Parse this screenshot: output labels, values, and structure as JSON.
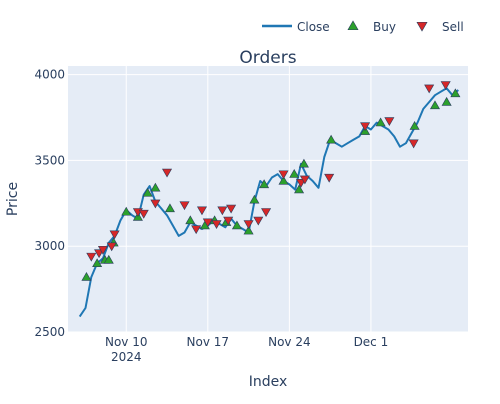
{
  "chart_data": {
    "type": "line",
    "title": "Orders",
    "xlabel": "Index",
    "ylabel": "Price",
    "x_range": [
      "2024-11-05",
      "2024-12-09T08:00"
    ],
    "ylim": [
      2500,
      4050
    ],
    "y_ticks": [
      2500,
      3000,
      3500,
      4000
    ],
    "y_tick_labels": [
      "2500",
      "3000",
      "3500",
      "4000"
    ],
    "x_ticks": [
      "2024-11-10",
      "2024-11-17",
      "2024-11-24",
      "2024-12-01"
    ],
    "x_tick_labels": [
      "Nov 10",
      "Nov 17",
      "Nov 24",
      "Dec 1"
    ],
    "x_tick_sublabel": "2024",
    "grid": true,
    "legend_position": "top-right",
    "colors": {
      "close": "#1f77b4",
      "buy": "#2ca02c",
      "sell": "#d62728",
      "plot_bg": "#e5ecf6",
      "text": "#2a3f5f"
    },
    "series": [
      {
        "name": "Close",
        "kind": "line",
        "x": [
          "2024-11-06",
          "2024-11-06T12:00",
          "2024-11-07",
          "2024-11-07T12:00",
          "2024-11-08",
          "2024-11-08T12:00",
          "2024-11-09",
          "2024-11-09T12:00",
          "2024-11-10",
          "2024-11-10T12:00",
          "2024-11-11",
          "2024-11-11T12:00",
          "2024-11-12",
          "2024-11-12T12:00",
          "2024-11-13",
          "2024-11-13T12:00",
          "2024-11-14",
          "2024-11-14T12:00",
          "2024-11-15",
          "2024-11-15T12:00",
          "2024-11-16",
          "2024-11-16T12:00",
          "2024-11-17",
          "2024-11-17T12:00",
          "2024-11-18",
          "2024-11-18T12:00",
          "2024-11-19",
          "2024-11-19T12:00",
          "2024-11-20",
          "2024-11-20T12:00",
          "2024-11-21",
          "2024-11-21T12:00",
          "2024-11-22",
          "2024-11-22T12:00",
          "2024-11-23",
          "2024-11-23T12:00",
          "2024-11-24",
          "2024-11-24T12:00",
          "2024-11-25",
          "2024-11-25T12:00",
          "2024-11-26",
          "2024-11-26T12:00",
          "2024-11-27",
          "2024-11-27T12:00",
          "2024-11-28",
          "2024-11-28T12:00",
          "2024-11-29",
          "2024-11-29T12:00",
          "2024-11-30",
          "2024-11-30T12:00",
          "2024-12-01",
          "2024-12-01T12:00",
          "2024-12-02",
          "2024-12-02T12:00",
          "2024-12-03",
          "2024-12-03T12:00",
          "2024-12-04",
          "2024-12-04T12:00",
          "2024-12-05",
          "2024-12-05T12:00",
          "2024-12-06",
          "2024-12-06T12:00",
          "2024-12-07",
          "2024-12-07T12:00",
          "2024-12-08",
          "2024-12-08T12:00"
        ],
        "y": [
          2590,
          2640,
          2820,
          2900,
          2930,
          3020,
          3060,
          3150,
          3210,
          3180,
          3160,
          3300,
          3350,
          3260,
          3220,
          3180,
          3120,
          3060,
          3080,
          3140,
          3120,
          3100,
          3120,
          3150,
          3130,
          3110,
          3160,
          3120,
          3100,
          3080,
          3260,
          3380,
          3350,
          3400,
          3420,
          3380,
          3360,
          3330,
          3480,
          3410,
          3380,
          3340,
          3520,
          3620,
          3600,
          3580,
          3600,
          3620,
          3640,
          3700,
          3680,
          3720,
          3700,
          3680,
          3640,
          3580,
          3600,
          3660,
          3720,
          3800,
          3840,
          3880,
          3900,
          3920,
          3880,
          3910
        ]
      },
      {
        "name": "Buy",
        "kind": "marker",
        "marker": "triangle-up",
        "x": [
          "2024-11-06T14:00",
          "2024-11-07T12:00",
          "2024-11-08T04:00",
          "2024-11-08T12:00",
          "2024-11-08T22:00",
          "2024-11-10",
          "2024-11-11",
          "2024-11-11T20:00",
          "2024-11-12T12:00",
          "2024-11-13T18:00",
          "2024-11-15T12:00",
          "2024-11-16T18:00",
          "2024-11-17T14:00",
          "2024-11-18T14:00",
          "2024-11-19T12:00",
          "2024-11-20T12:00",
          "2024-11-21",
          "2024-11-21T20:00",
          "2024-11-23T12:00",
          "2024-11-24T10:00",
          "2024-11-24T20:00",
          "2024-11-25T06:00",
          "2024-11-27T14:00",
          "2024-11-30T12:00",
          "2024-12-01T20:00",
          "2024-12-04T18:00",
          "2024-12-06T12:00",
          "2024-12-07T12:00",
          "2024-12-08T06:00"
        ],
        "y": [
          2820,
          2900,
          2920,
          2920,
          3020,
          3200,
          3170,
          3310,
          3340,
          3220,
          3150,
          3120,
          3150,
          3140,
          3120,
          3090,
          3270,
          3360,
          3380,
          3420,
          3330,
          3480,
          3620,
          3670,
          3720,
          3700,
          3820,
          3840,
          3890
        ]
      },
      {
        "name": "Sell",
        "kind": "marker",
        "marker": "triangle-down",
        "x": [
          "2024-11-07",
          "2024-11-07T16:00",
          "2024-11-08",
          "2024-11-08T18:00",
          "2024-11-09",
          "2024-11-11",
          "2024-11-11T12:00",
          "2024-11-12T12:00",
          "2024-11-13T12:00",
          "2024-11-15",
          "2024-11-16",
          "2024-11-16T12:00",
          "2024-11-17",
          "2024-11-17T18:00",
          "2024-11-18T06:00",
          "2024-11-18T18:00",
          "2024-11-19",
          "2024-11-20T12:00",
          "2024-11-21T08:00",
          "2024-11-22",
          "2024-11-23T12:00",
          "2024-11-25",
          "2024-11-25T08:00",
          "2024-11-27T10:00",
          "2024-11-30T12:00",
          "2024-12-02T14:00",
          "2024-12-04T16:00",
          "2024-12-06",
          "2024-12-07T10:00"
        ],
        "y": [
          2940,
          2960,
          2980,
          3000,
          3070,
          3200,
          3190,
          3250,
          3430,
          3240,
          3100,
          3210,
          3140,
          3130,
          3210,
          3150,
          3220,
          3130,
          3150,
          3200,
          3420,
          3370,
          3390,
          3400,
          3700,
          3730,
          3600,
          3920,
          3940
        ]
      }
    ]
  }
}
